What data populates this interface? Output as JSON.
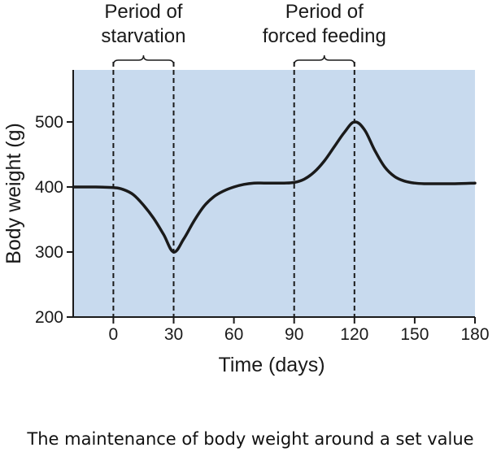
{
  "chart_data": {
    "type": "line",
    "xlabel": "Time (days)",
    "ylabel": "Body weight (g)",
    "xlim": [
      -20,
      180
    ],
    "ylim": [
      200,
      580
    ],
    "xticks": [
      0,
      30,
      60,
      90,
      120,
      150,
      180
    ],
    "yticks": [
      200,
      300,
      400,
      500
    ],
    "grid": false,
    "background_color": "#c8daee",
    "line_color": "#1a1a1a",
    "series": [
      {
        "x": [
          -20,
          -10,
          0,
          5,
          10,
          15,
          20,
          25,
          30,
          35,
          40,
          45,
          50,
          55,
          60,
          65,
          70,
          75,
          80,
          85,
          90,
          95,
          100,
          105,
          110,
          115,
          120,
          125,
          130,
          135,
          140,
          145,
          150,
          155,
          160,
          170,
          180
        ],
        "y": [
          400,
          400,
          399,
          396,
          388,
          372,
          352,
          327,
          300,
          320,
          347,
          370,
          385,
          394,
          400,
          404,
          406,
          406,
          406,
          406,
          407,
          412,
          423,
          440,
          462,
          484,
          500,
          488,
          457,
          431,
          416,
          409,
          406,
          405,
          405,
          405,
          406
        ]
      }
    ],
    "annotations": [
      {
        "label_lines": [
          "Period of",
          "starvation"
        ],
        "x_start": 0,
        "x_end": 30
      },
      {
        "label_lines": [
          "Period of",
          "forced feeding"
        ],
        "x_start": 90,
        "x_end": 120
      }
    ]
  },
  "caption": "The maintenance of body weight around a set value"
}
